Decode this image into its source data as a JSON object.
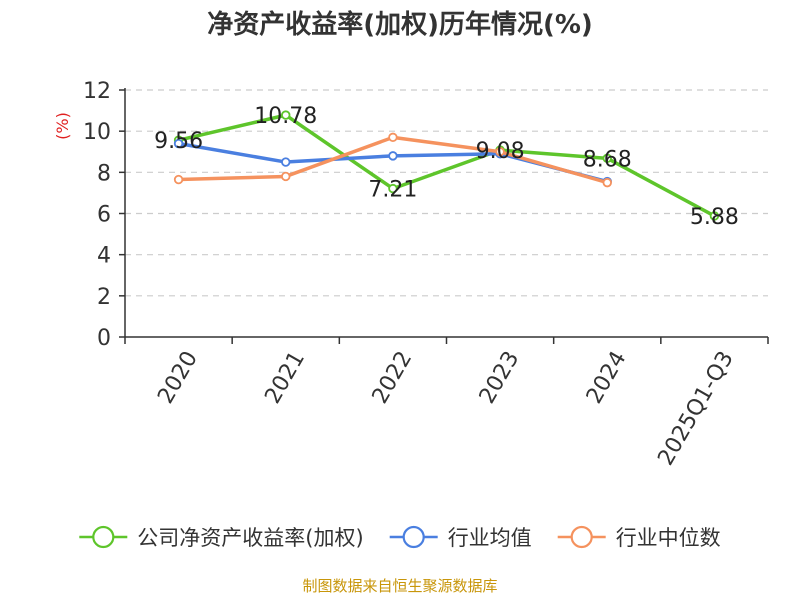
{
  "chart_data": {
    "type": "line",
    "title": "净资产收益率(加权)历年情况(%)",
    "ylabel": "(%)",
    "xlabel": "",
    "categories": [
      "2020",
      "2021",
      "2022",
      "2023",
      "2024",
      "2025Q1-Q3"
    ],
    "ylim": [
      0,
      12
    ],
    "yticks": [
      0,
      2,
      4,
      6,
      8,
      10,
      12
    ],
    "grid": true,
    "legend_position": "bottom",
    "series": [
      {
        "name": "公司净资产收益率(加权)",
        "color": "#5ec52b",
        "values": [
          9.56,
          10.78,
          7.21,
          9.08,
          8.68,
          5.88
        ],
        "show_labels": true
      },
      {
        "name": "行业均值",
        "color": "#4a7fe0",
        "values": [
          9.4,
          8.5,
          8.8,
          8.9,
          7.55,
          null
        ],
        "show_labels": false
      },
      {
        "name": "行业中位数",
        "color": "#f5925e",
        "values": [
          7.65,
          7.8,
          9.7,
          9.0,
          7.5,
          null
        ],
        "show_labels": false
      }
    ]
  },
  "source_note": "制图数据来自恒生聚源数据库",
  "colors": {
    "axis": "#333333",
    "grid": "#cccccc",
    "title": "#333333",
    "ylabel": "#e02020",
    "source": "#c8960a"
  }
}
